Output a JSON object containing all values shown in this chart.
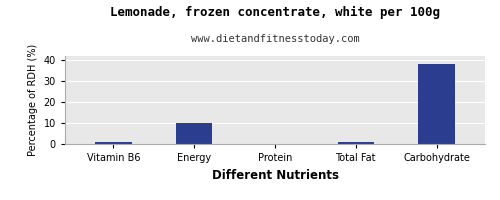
{
  "title": "Lemonade, frozen concentrate, white per 100g",
  "subtitle": "www.dietandfitnesstoday.com",
  "xlabel": "Different Nutrients",
  "ylabel": "Percentage of RDH (%)",
  "categories": [
    "Vitamin B6",
    "Energy",
    "Protein",
    "Total Fat",
    "Carbohydrate"
  ],
  "values": [
    1,
    10,
    0,
    1,
    38
  ],
  "bar_color": "#2b3d8f",
  "ylim": [
    0,
    42
  ],
  "yticks": [
    0,
    10,
    20,
    30,
    40
  ],
  "background_color": "#ffffff",
  "plot_bg_color": "#e8e8e8",
  "title_fontsize": 9,
  "subtitle_fontsize": 7.5,
  "xlabel_fontsize": 8.5,
  "ylabel_fontsize": 7,
  "tick_fontsize": 7,
  "grid_color": "#ffffff",
  "bar_width": 0.45
}
